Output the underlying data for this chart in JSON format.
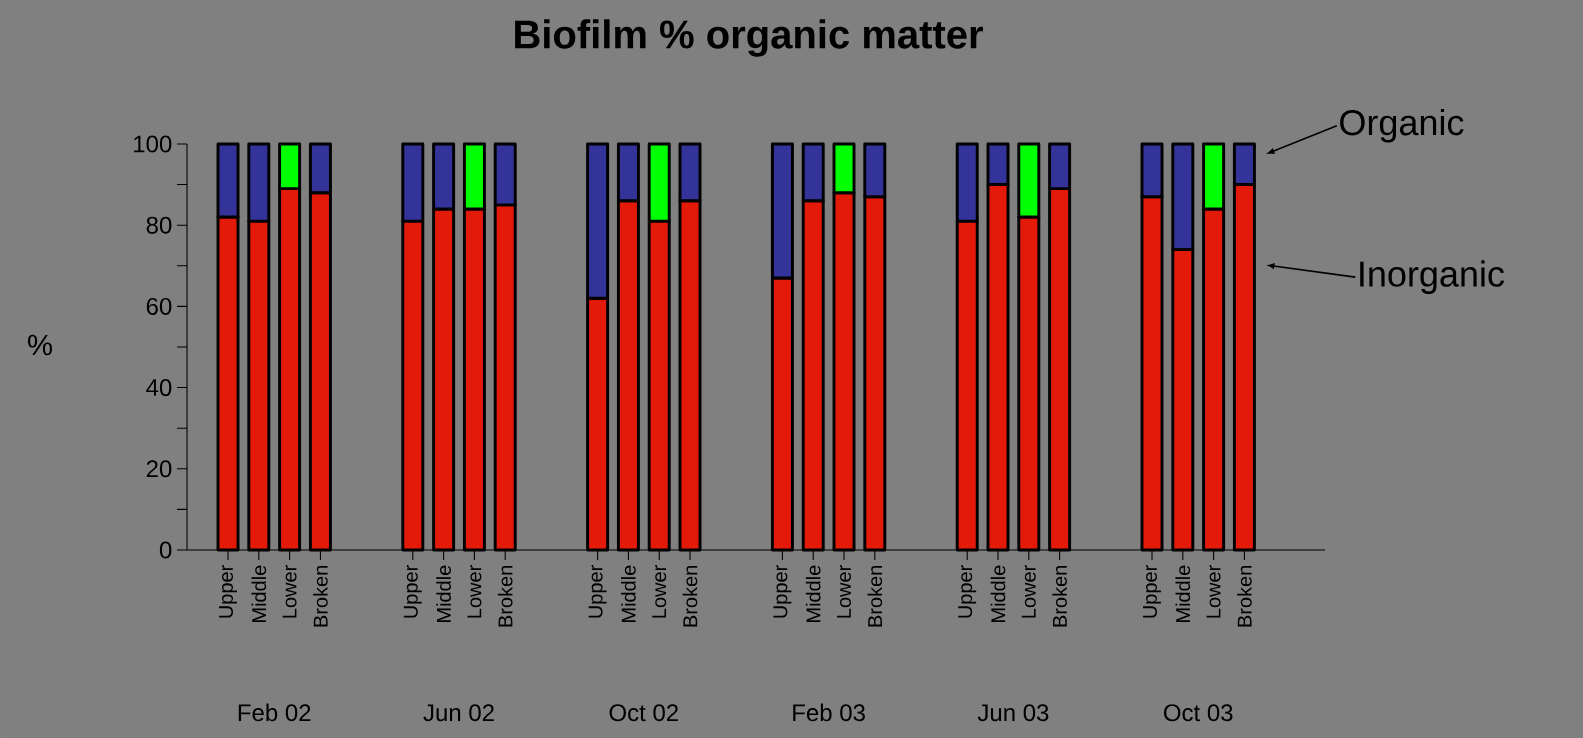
{
  "chart_data": {
    "type": "bar",
    "stacked": true,
    "title": "Biofilm % organic matter",
    "ylabel": "%",
    "categories": [
      "Upper",
      "Middle",
      "Lower",
      "Broken",
      null,
      null,
      "Upper",
      "Middle",
      "Lower",
      "Broken",
      null,
      null,
      "Upper",
      "Middle",
      "Lower",
      "Broken",
      null,
      null,
      "Upper",
      "Middle",
      "Lower",
      "Broken",
      null,
      null,
      "Upper",
      "Middle",
      "Lower",
      "Broken",
      null,
      null,
      "Upper",
      "Middle",
      "Lower",
      "Broken",
      null,
      null
    ],
    "series": [
      {
        "name": "Inorganic",
        "color": "#e31a0a",
        "values": [
          82,
          81,
          89,
          88,
          null,
          null,
          81,
          84,
          84,
          85,
          null,
          null,
          62,
          86,
          81,
          86,
          null,
          null,
          67,
          86,
          88,
          87,
          null,
          null,
          81,
          90,
          82,
          89,
          null,
          null,
          87,
          74,
          84,
          90,
          null,
          null
        ]
      },
      {
        "name": "Organic",
        "color": "#333399",
        "colors": [
          null,
          null,
          "#00ff00",
          null,
          null,
          null,
          null,
          null,
          "#00ff00",
          null,
          null,
          null,
          null,
          null,
          "#00ff00",
          null,
          null,
          null,
          null,
          null,
          "#00ff00",
          null,
          null,
          null,
          null,
          null,
          "#00ff00",
          null,
          null,
          null,
          null,
          null,
          "#00ff00",
          null,
          null,
          null
        ],
        "values": [
          18,
          19,
          11,
          12,
          null,
          null,
          19,
          16,
          16,
          15,
          null,
          null,
          38,
          14,
          19,
          14,
          null,
          null,
          33,
          14,
          12,
          13,
          null,
          null,
          19,
          10,
          18,
          11,
          null,
          null,
          13,
          26,
          16,
          10,
          null,
          null
        ]
      }
    ],
    "ylim": [
      0,
      100
    ],
    "yticks": [
      0,
      {
        "value": 10,
        "label": null
      },
      20,
      {
        "value": 30,
        "label": null
      },
      40,
      {
        "value": 50,
        "label": null
      },
      60,
      {
        "value": 70,
        "label": null
      },
      80,
      {
        "value": 90,
        "label": null
      },
      100
    ],
    "annotations": [
      "Feb 02",
      "Jun 02",
      "Oct 02",
      "Feb 03",
      "Jun 03",
      "Oct 03"
    ],
    "legend": "right"
  }
}
